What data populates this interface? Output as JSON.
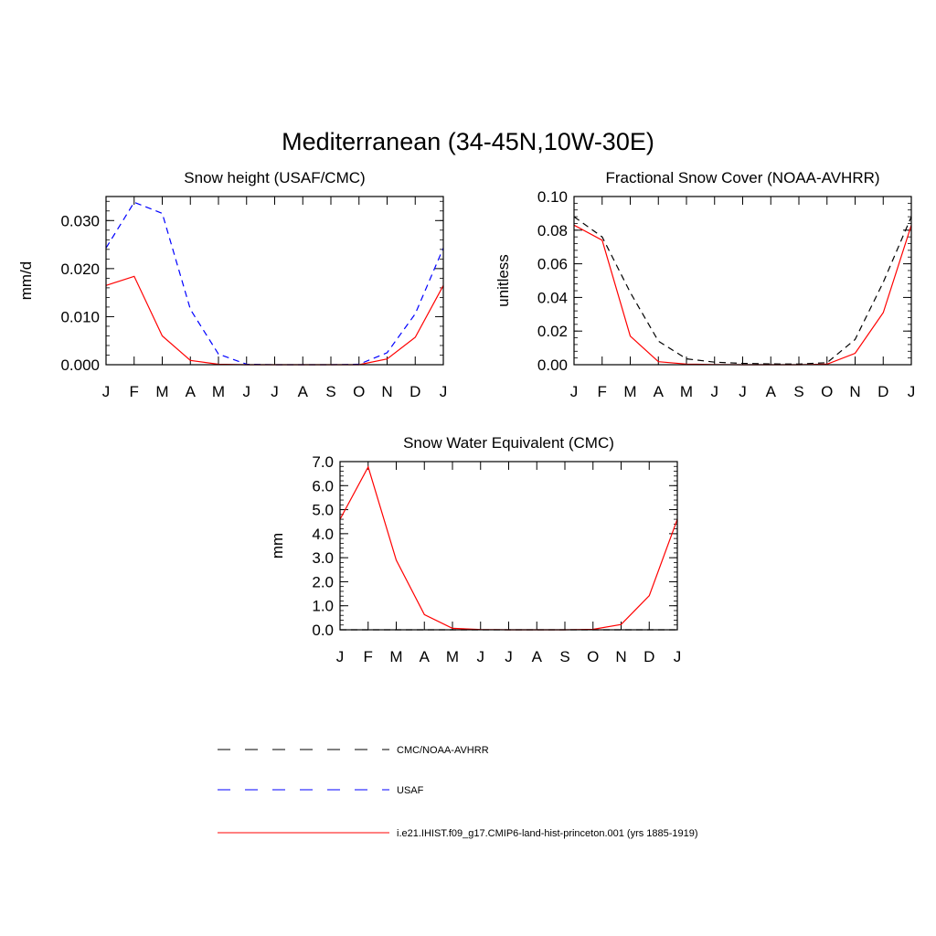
{
  "figure": {
    "title": "Mediterranean (34-45N,10W-30E)"
  },
  "legend": [
    {
      "label": "CMC/NOAA-AVHRR",
      "color": "#000000",
      "style": "dashed"
    },
    {
      "label": "USAF",
      "color": "#0000ff",
      "style": "dashed"
    },
    {
      "label": "i.e21.IHIST.f09_g17.CMIP6-land-hist-princeton.001 (yrs 1885-1919)",
      "color": "#ff0000",
      "style": "solid"
    }
  ],
  "chart_data": [
    {
      "type": "line",
      "title": "Snow height (USAF/CMC)",
      "xlabel": "",
      "ylabel": "mm/d",
      "categories": [
        "J",
        "F",
        "M",
        "A",
        "M",
        "J",
        "J",
        "A",
        "S",
        "O",
        "N",
        "D",
        "J"
      ],
      "ylim": [
        0,
        0.035
      ],
      "yticks": [
        0,
        0.01,
        0.02,
        0.03
      ],
      "ytick_labels": [
        "0.000",
        "0.010",
        "0.020",
        "0.030"
      ],
      "series": [
        {
          "name": "USAF",
          "color": "#0000ff",
          "dash": "dashed",
          "values": [
            0.0243,
            0.0338,
            0.0315,
            0.0115,
            0.0022,
            0.0001,
            0,
            0,
            0,
            0.0001,
            0.0025,
            0.0106,
            0.0243
          ]
        },
        {
          "name": "i.e21.IHIST.f09_g17.CMIP6-land-hist-princeton.001 (yrs 1885-1919)",
          "color": "#ff0000",
          "dash": "solid",
          "values": [
            0.0165,
            0.0184,
            0.006,
            0.0009,
            0.0001,
            0,
            0,
            0,
            0,
            0,
            0.0012,
            0.0057,
            0.0165
          ]
        }
      ]
    },
    {
      "type": "line",
      "title": "Fractional Snow Cover (NOAA-AVHRR)",
      "xlabel": "",
      "ylabel": "unitless",
      "categories": [
        "J",
        "F",
        "M",
        "A",
        "M",
        "J",
        "J",
        "A",
        "S",
        "O",
        "N",
        "D",
        "J"
      ],
      "ylim": [
        0,
        0.1
      ],
      "yticks": [
        0,
        0.02,
        0.04,
        0.06,
        0.08,
        0.1
      ],
      "ytick_labels": [
        "0.00",
        "0.02",
        "0.04",
        "0.06",
        "0.08",
        "0.10"
      ],
      "series": [
        {
          "name": "CMC/NOAA-AVHRR",
          "color": "#000000",
          "dash": "dashed",
          "values": [
            0.088,
            0.076,
            0.043,
            0.014,
            0.0035,
            0.0015,
            0.0008,
            0.0005,
            0.0004,
            0.0012,
            0.015,
            0.049,
            0.088
          ]
        },
        {
          "name": "i.e21.IHIST.f09_g17.CMIP6-land-hist-princeton.001 (yrs 1885-1919)",
          "color": "#ff0000",
          "dash": "solid",
          "values": [
            0.083,
            0.074,
            0.017,
            0.0018,
            0.0004,
            0.0001,
            0,
            0,
            0,
            0.0003,
            0.0068,
            0.031,
            0.083
          ]
        }
      ]
    },
    {
      "type": "line",
      "title": "Snow Water Equivalent (CMC)",
      "xlabel": "",
      "ylabel": "mm",
      "categories": [
        "J",
        "F",
        "M",
        "A",
        "M",
        "J",
        "J",
        "A",
        "S",
        "O",
        "N",
        "D",
        "J"
      ],
      "ylim": [
        0,
        7.0
      ],
      "yticks": [
        0,
        1,
        2,
        3,
        4,
        5,
        6,
        7
      ],
      "ytick_labels": [
        "0.0",
        "1.0",
        "2.0",
        "3.0",
        "4.0",
        "5.0",
        "6.0",
        "7.0"
      ],
      "series": [
        {
          "name": "CMC/NOAA-AVHRR",
          "color": "#000000",
          "dash": "dashed",
          "values": [
            0,
            0,
            0,
            0,
            0,
            0,
            0,
            0,
            0,
            0,
            0,
            0,
            0
          ]
        },
        {
          "name": "i.e21.IHIST.f09_g17.CMIP6-land-hist-princeton.001 (yrs 1885-1919)",
          "color": "#ff0000",
          "dash": "solid",
          "values": [
            4.6,
            6.78,
            2.9,
            0.63,
            0.06,
            0.01,
            0,
            0,
            0,
            0.02,
            0.22,
            1.42,
            4.6
          ]
        }
      ]
    }
  ]
}
